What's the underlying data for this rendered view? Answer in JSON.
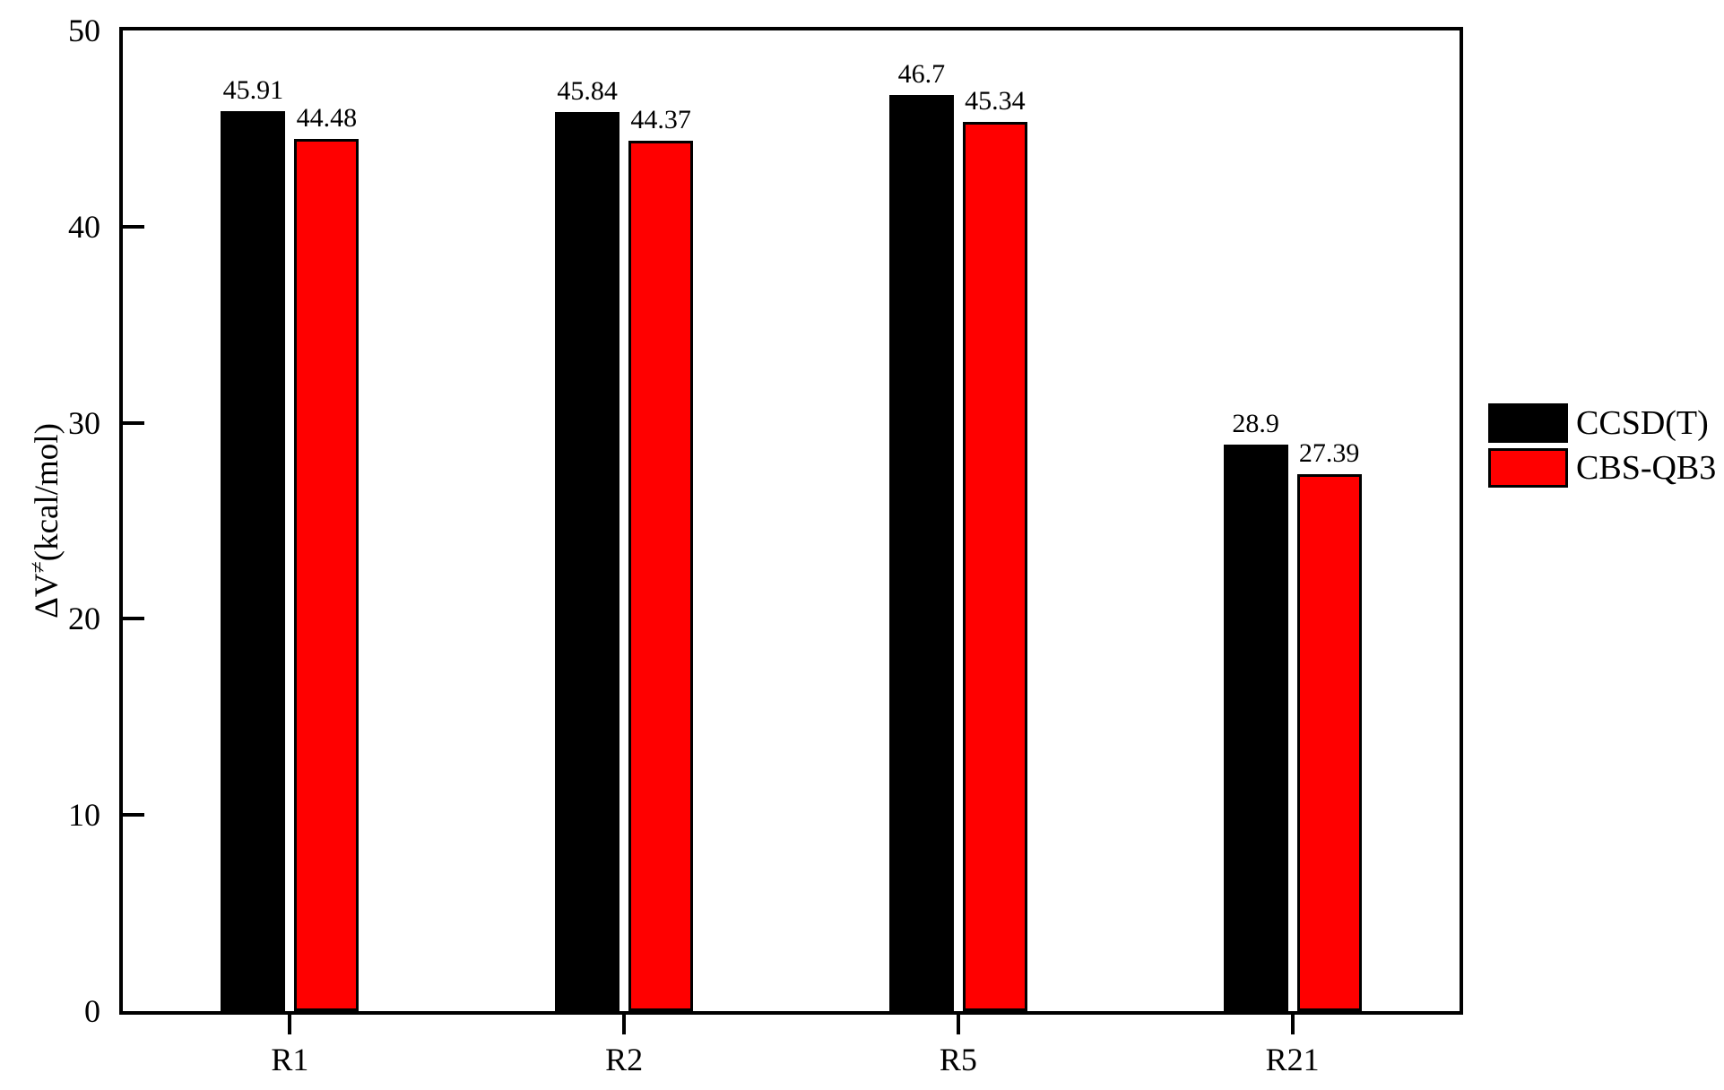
{
  "chart_data": {
    "type": "bar",
    "title": "",
    "categories": [
      "R1",
      "R2",
      "R5",
      "R21"
    ],
    "series": [
      {
        "name": "CCSD(T)",
        "color": "#000000",
        "values": [
          45.91,
          45.84,
          46.7,
          28.9
        ],
        "labels": [
          "45.91",
          "45.84",
          "46.7",
          "28.9"
        ]
      },
      {
        "name": "CBS-QB3",
        "color": "#ff0000",
        "values": [
          44.48,
          44.37,
          45.34,
          27.39
        ],
        "labels": [
          "44.48",
          "44.37",
          "45.34",
          "27.39"
        ]
      }
    ],
    "xlabel": "",
    "ylabel": {
      "prefix": "ΔV",
      "superscript": "≠",
      "suffix": "(kcal/mol)"
    },
    "ylim": [
      0,
      50
    ],
    "yticks": [
      0,
      10,
      20,
      30,
      40,
      50
    ],
    "ytick_labels": [
      "0",
      "10",
      "20",
      "30",
      "40",
      "50"
    ],
    "grid": false,
    "legend_position": "right-outside",
    "bar_edge_color": "#000000",
    "plot_background": "#ffffff"
  }
}
